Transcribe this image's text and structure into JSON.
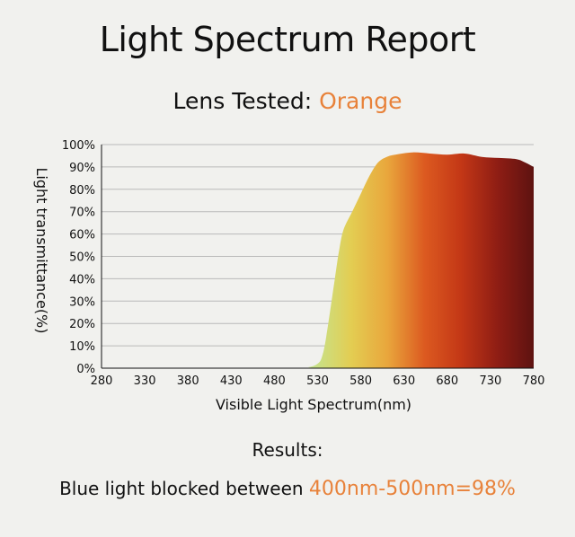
{
  "header": {
    "title": "Light Spectrum Report",
    "lens_prefix": "Lens Tested: ",
    "lens_value": "Orange"
  },
  "footer": {
    "results_label": "Results:",
    "blocked_prefix": "Blue light blocked between ",
    "blocked_value": "400nm-500nm=98%"
  },
  "colors": {
    "accent": "#e8823a",
    "grid": "#b9b9b9",
    "background": "#f1f1ee",
    "gradient": [
      "#c7e28a",
      "#e3cd52",
      "#e9a63c",
      "#dc5a20",
      "#c33716",
      "#8e1d14",
      "#5c1210"
    ]
  },
  "chart_data": {
    "type": "area",
    "xlabel": "Visible Light Spectrum(nm)",
    "ylabel": "Light transmittance(%)",
    "xlim": [
      280,
      780
    ],
    "ylim": [
      0,
      100
    ],
    "grid": true,
    "x_ticks": [
      "280",
      "330",
      "380",
      "430",
      "480",
      "530",
      "580",
      "630",
      "680",
      "730",
      "780"
    ],
    "y_ticks": [
      "0%",
      "10%",
      "20%",
      "30%",
      "40%",
      "50%",
      "60%",
      "70%",
      "80%",
      "90%",
      "100%"
    ],
    "x": [
      280,
      500,
      520,
      530,
      535,
      540,
      550,
      555,
      560,
      570,
      580,
      590,
      600,
      610,
      620,
      640,
      660,
      680,
      700,
      720,
      740,
      760,
      770,
      780
    ],
    "y": [
      0,
      0,
      0.5,
      2,
      5,
      14,
      40,
      53,
      62,
      70,
      78,
      86,
      92,
      94.5,
      95.5,
      96.5,
      96,
      95.5,
      96,
      94.5,
      94,
      93.5,
      92,
      90
    ]
  }
}
